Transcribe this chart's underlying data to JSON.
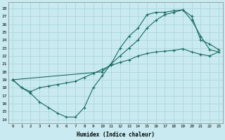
{
  "xlabel": "Humidex (Indice chaleur)",
  "background_color": "#c8eaf0",
  "grid_color": "#a8d4d8",
  "line_color": "#1a6b60",
  "xlim": [
    -0.5,
    23.5
  ],
  "ylim": [
    13.5,
    28.8
  ],
  "xticks": [
    0,
    1,
    2,
    3,
    4,
    5,
    6,
    7,
    8,
    9,
    10,
    11,
    12,
    13,
    14,
    15,
    16,
    17,
    18,
    19,
    20,
    21,
    22,
    23
  ],
  "yticks": [
    14,
    15,
    16,
    17,
    18,
    19,
    20,
    21,
    22,
    23,
    24,
    25,
    26,
    27,
    28
  ],
  "line1_x": [
    0,
    1,
    2,
    3,
    4,
    5,
    6,
    7,
    8,
    9,
    10,
    11,
    12,
    13,
    14,
    15,
    16,
    17,
    18,
    19,
    20,
    21,
    22,
    23
  ],
  "line1_y": [
    19.0,
    18.0,
    17.3,
    16.2,
    15.5,
    14.8,
    14.3,
    14.3,
    15.5,
    18.0,
    19.5,
    21.0,
    23.0,
    24.5,
    25.5,
    27.2,
    27.5,
    27.5,
    27.7,
    27.8,
    26.5,
    24.5,
    22.8,
    22.5
  ],
  "line2_x": [
    0,
    1,
    2,
    3,
    4,
    5,
    6,
    7,
    8,
    9,
    10,
    11,
    12,
    13,
    14,
    15,
    16,
    17,
    18,
    19,
    20,
    21,
    22,
    23
  ],
  "line2_y": [
    19.0,
    18.0,
    17.5,
    18.0,
    18.2,
    18.4,
    18.6,
    18.8,
    19.3,
    19.8,
    20.3,
    20.8,
    21.2,
    21.5,
    22.0,
    22.3,
    22.5,
    22.6,
    22.7,
    22.9,
    22.5,
    22.2,
    22.0,
    22.5
  ],
  "line3_x": [
    0,
    10,
    11,
    12,
    13,
    14,
    15,
    16,
    17,
    18,
    19,
    20,
    21,
    22,
    23
  ],
  "line3_y": [
    19.0,
    20.0,
    21.0,
    22.0,
    23.0,
    24.0,
    25.5,
    26.5,
    27.2,
    27.5,
    27.8,
    27.0,
    24.0,
    23.5,
    22.8
  ]
}
